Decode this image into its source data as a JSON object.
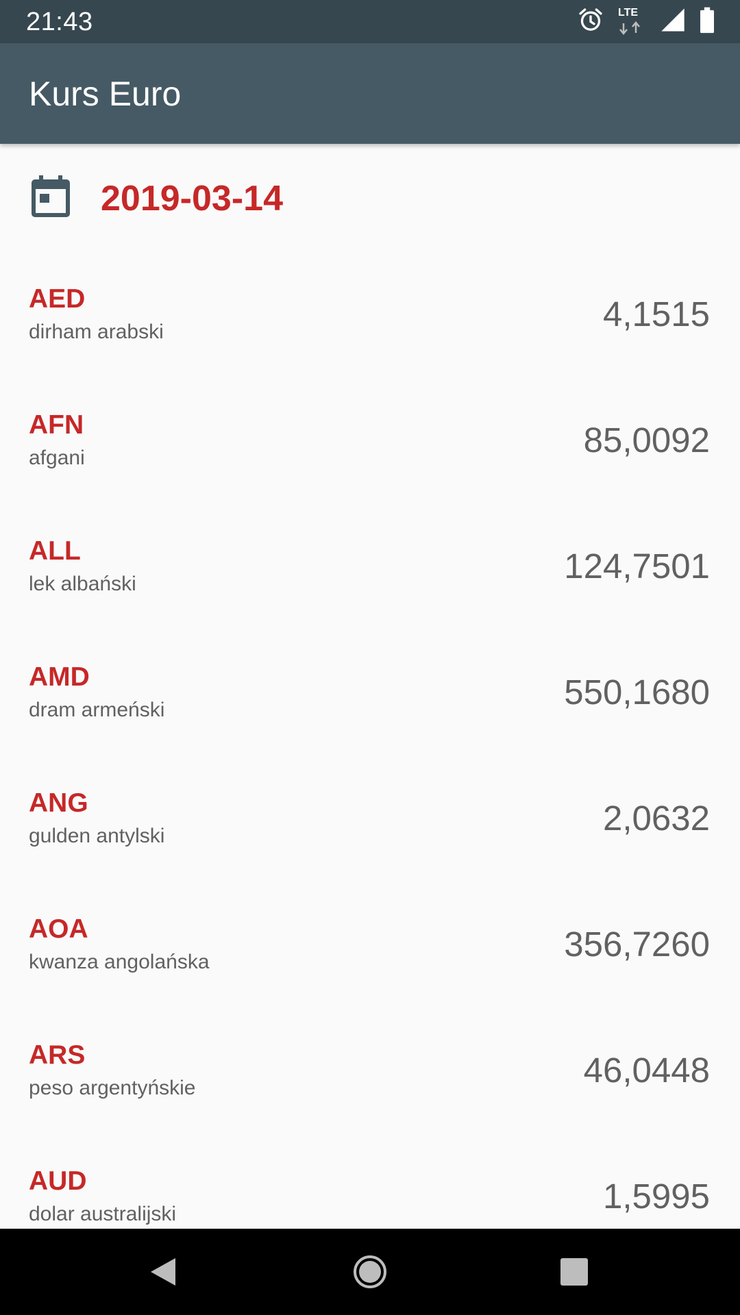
{
  "status_bar": {
    "time": "21:43",
    "network_label": "LTE",
    "icons": [
      "alarm-icon",
      "lte-data-icon",
      "signal-icon",
      "battery-icon"
    ]
  },
  "app_bar": {
    "title": "Kurs Euro"
  },
  "date_picker": {
    "icon": "calendar-icon",
    "date": "2019-03-14"
  },
  "rates": [
    {
      "code": "AED",
      "name": "dirham arabski",
      "value": "4,1515"
    },
    {
      "code": "AFN",
      "name": "afgani",
      "value": "85,0092"
    },
    {
      "code": "ALL",
      "name": "lek albański",
      "value": "124,7501"
    },
    {
      "code": "AMD",
      "name": "dram armeński",
      "value": "550,1680"
    },
    {
      "code": "ANG",
      "name": "gulden antylski",
      "value": "2,0632"
    },
    {
      "code": "AOA",
      "name": "kwanza angolańska",
      "value": "356,7260"
    },
    {
      "code": "ARS",
      "name": "peso argentyńskie",
      "value": "46,0448"
    },
    {
      "code": "AUD",
      "name": "dolar australijski",
      "value": "1,5995"
    }
  ],
  "nav_bar": {
    "icons": [
      "back-icon",
      "home-icon",
      "recents-icon"
    ]
  },
  "colors": {
    "status_bar": "#37474f",
    "app_bar": "#455a64",
    "accent": "#c62828",
    "secondary_text": "#616161",
    "background": "#fafafa"
  }
}
